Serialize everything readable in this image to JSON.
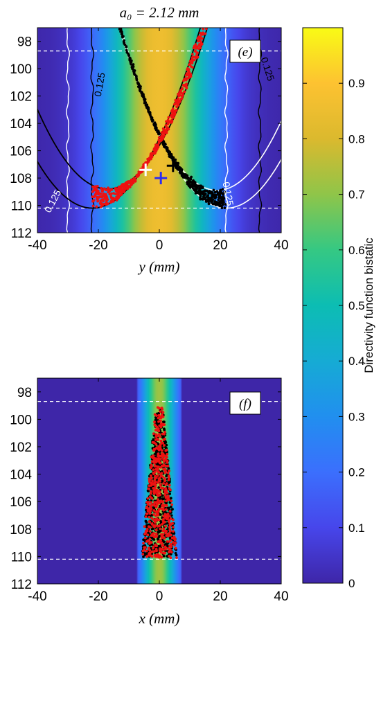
{
  "figure_title": "a₀ = 2.12 mm",
  "chart_data": [
    {
      "type": "heatmap",
      "panel_label": "(e)",
      "xlabel": "y (mm)",
      "ylabel": "",
      "xlim": [
        -40,
        40
      ],
      "ylim": [
        97,
        112
      ],
      "y_axis_reversed": true,
      "xticks": [
        "-40",
        "-20",
        "0",
        "20",
        "40"
      ],
      "yticks": [
        "98",
        "100",
        "102",
        "104",
        "106",
        "108",
        "110",
        "112"
      ],
      "field_profile": {
        "center": 0,
        "width_sigma_mm": 12.5,
        "peak": 0.86
      },
      "dashed_lines_y": [
        98.7,
        110.2
      ],
      "white_contour_x": [
        -30,
        22
      ],
      "black_contour_x": [
        -22,
        33
      ],
      "contour_labels": [
        "0.125",
        "0.125",
        "0.125",
        "0.125"
      ],
      "markers": [
        {
          "symbol": "+",
          "color": "#ffffff",
          "x": -4.5,
          "y": 107.4
        },
        {
          "symbol": "+",
          "color": "#000000",
          "x": 4.5,
          "y": 107.1
        },
        {
          "symbol": "+",
          "color": "#2d2df0",
          "x": 0.5,
          "y": 108.0
        }
      ],
      "series": [
        {
          "color": "#000000",
          "description_points": "x from -28 to 22, band along left-descending parabola",
          "count": 700
        },
        {
          "color": "#ee1111",
          "description_points": "x from -22 to 30, band along right-rising parabola",
          "count": 700
        }
      ]
    },
    {
      "type": "heatmap",
      "panel_label": "(f)",
      "xlabel": "x (mm)",
      "ylabel": "",
      "xlim": [
        -40,
        40
      ],
      "ylim": [
        97,
        112
      ],
      "y_axis_reversed": true,
      "xticks": [
        "-40",
        "-20",
        "0",
        "20",
        "40"
      ],
      "yticks": [
        "98",
        "100",
        "102",
        "104",
        "106",
        "108",
        "110",
        "112"
      ],
      "field_profile": {
        "center": 0,
        "width_sigma_mm": 4.0,
        "peak": 0.72,
        "half_width_mm": 7
      },
      "dashed_lines_y": [
        98.7,
        110.2
      ],
      "series": [
        {
          "color": "#000000",
          "description_points": "cluster around x=0, y 99 to 110",
          "count": 600
        },
        {
          "color": "#ee1111",
          "description_points": "cluster around x=0, y 99.5 to 110",
          "count": 500
        }
      ]
    }
  ],
  "colorbar": {
    "label": "Directivity function bistatic",
    "range": [
      0,
      1
    ],
    "ticks": [
      "0",
      "0.1",
      "0.2",
      "0.3",
      "0.4",
      "0.5",
      "0.6",
      "0.7",
      "0.8",
      "0.9"
    ]
  }
}
